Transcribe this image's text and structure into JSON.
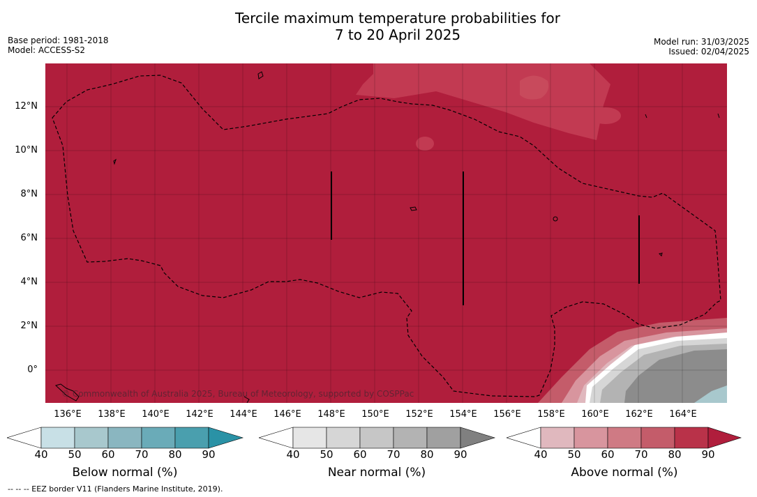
{
  "header": {
    "title_line1": "Tercile maximum temperature probabilities for",
    "title_line2": "7 to 20 April 2025",
    "base_period": "Base period: 1981-2018",
    "model": "Model: ACCESS-S2",
    "model_run": "Model run: 31/03/2025",
    "issued": "Issued: 02/04/2025"
  },
  "map": {
    "lat_labels": [
      "12°N",
      "10°N",
      "8°N",
      "6°N",
      "4°N",
      "2°N",
      "0°"
    ],
    "lon_labels": [
      "136°E",
      "138°E",
      "140°E",
      "142°E",
      "144°E",
      "146°E",
      "148°E",
      "150°E",
      "152°E",
      "154°E",
      "156°E",
      "158°E",
      "160°E",
      "162°E",
      "164°E"
    ],
    "copyright": "© Commonwealth of Australia 2025, Bureau of Meteorology, supported by COSPPac",
    "background_color": "#b01e3c"
  },
  "colorbars": [
    {
      "label": "Below normal (%)",
      "ticks": [
        "40",
        "50",
        "60",
        "70",
        "80",
        "90"
      ],
      "colors": [
        "#ffffff",
        "#c8e0e6",
        "#a8c8cd",
        "#8ab6c0",
        "#6aabb8",
        "#4a9fae",
        "#2a92a6"
      ]
    },
    {
      "label": "Near normal (%)",
      "ticks": [
        "40",
        "50",
        "60",
        "70",
        "80",
        "90"
      ],
      "colors": [
        "#ffffff",
        "#e6e6e6",
        "#d6d6d6",
        "#c6c6c6",
        "#b3b3b3",
        "#a0a0a0",
        "#808080"
      ]
    },
    {
      "label": "Above normal (%)",
      "ticks": [
        "40",
        "50",
        "60",
        "70",
        "80",
        "90"
      ],
      "colors": [
        "#ffffff",
        "#e0b8be",
        "#d8959e",
        "#cf7a84",
        "#c45c6a",
        "#b93249",
        "#b01e3c"
      ]
    }
  ],
  "footnote": "--  --  -- EEZ border V11 (Flanders Marine Institute, 2019)."
}
